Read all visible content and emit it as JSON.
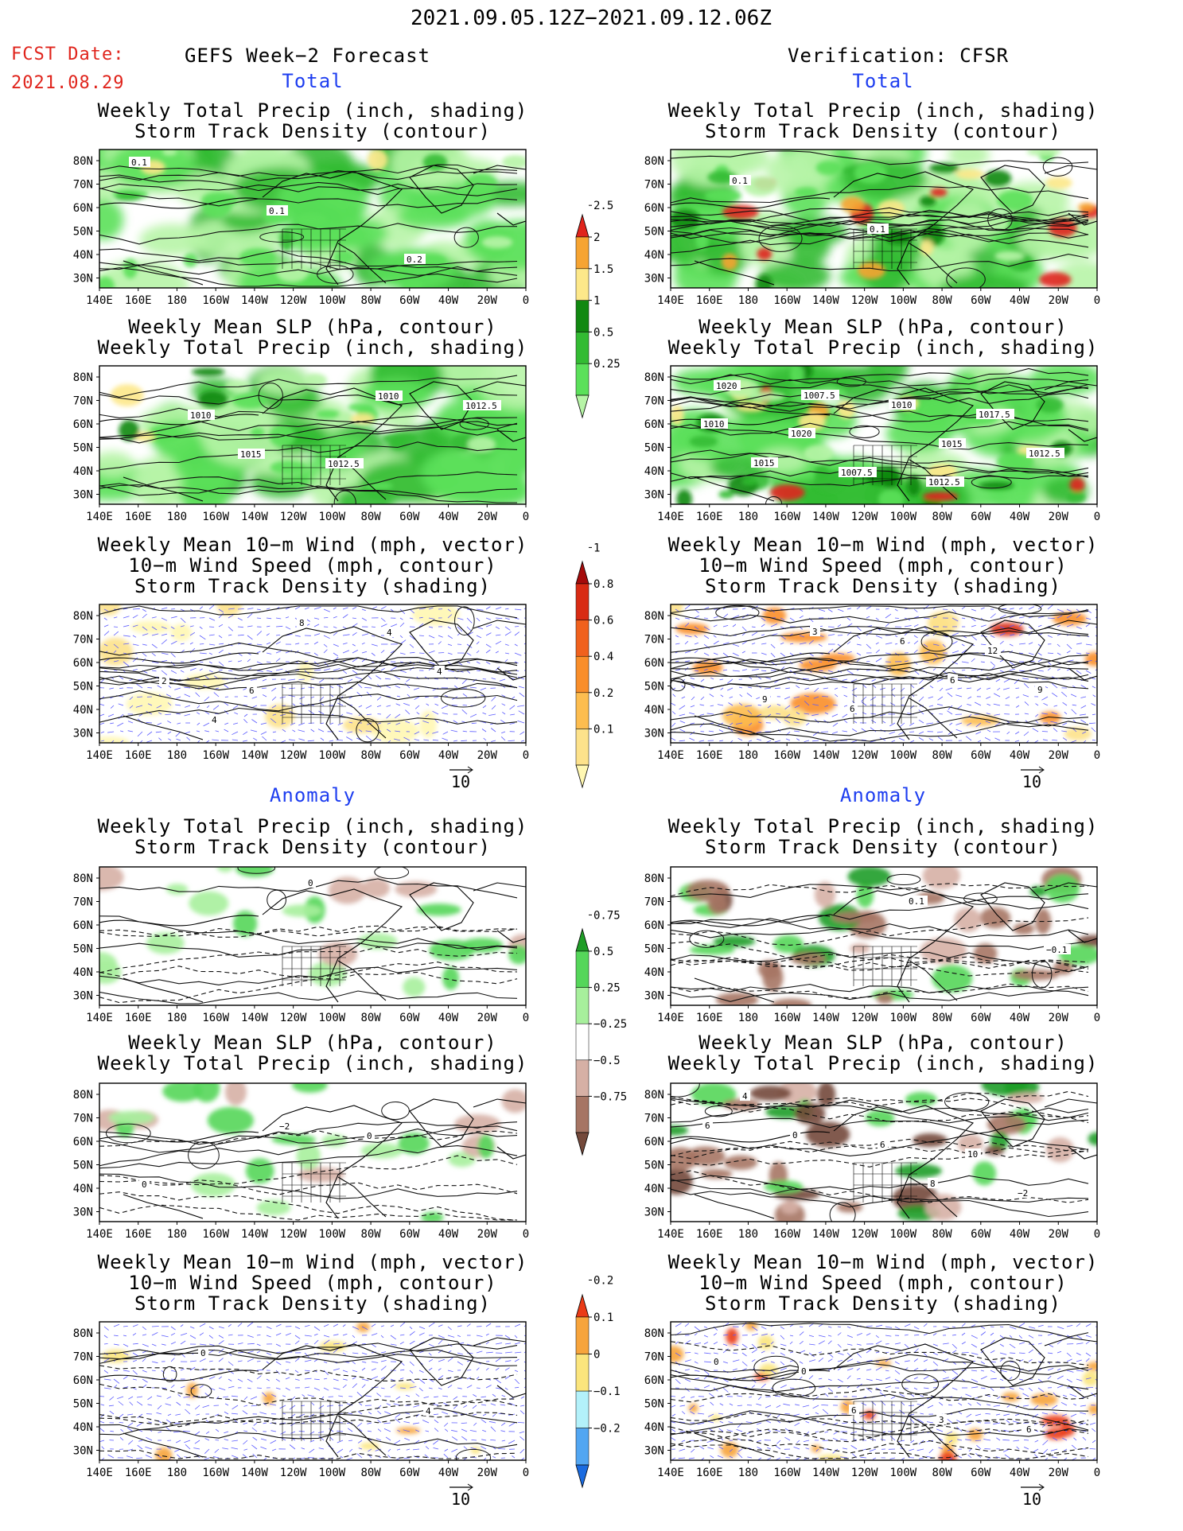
{
  "header": {
    "title": "2021.09.05.12Z−2021.09.12.06Z",
    "fcst_label": "FCST Date:",
    "fcst_date": "2021.08.29",
    "left_title": "GEFS Week−2 Forecast",
    "right_title": "Verification: CFSR"
  },
  "sections": {
    "total": "Total",
    "anomaly": "Anomaly"
  },
  "panel_titles": {
    "precip_track": [
      "Weekly Total Precip (inch, shading)",
      "Storm Track Density (contour)"
    ],
    "slp_precip": [
      "Weekly Mean SLP (hPa, contour)",
      "Weekly Total Precip (inch, shading)"
    ],
    "wind_track": [
      "Weekly Mean 10−m Wind (mph, vector)",
      "10−m Wind Speed (mph, contour)",
      "Storm Track Density (shading)"
    ]
  },
  "axes": {
    "lat_labels": [
      "80N",
      "70N",
      "60N",
      "50N",
      "40N",
      "30N"
    ],
    "lon_labels": [
      "140E",
      "160E",
      "180",
      "160W",
      "140W",
      "120W",
      "100W",
      "80W",
      "60W",
      "40W",
      "20W",
      "0"
    ]
  },
  "vector_ref": "10",
  "colorbars": {
    "precip_total": {
      "labels": [
        "0.25",
        "0.5",
        "1",
        "1.5",
        "2",
        "2.5"
      ],
      "colors": [
        "#b7f4a7",
        "#5be05a",
        "#33bb33",
        "#118811",
        "#fde88a",
        "#f6a432",
        "#e0241c"
      ]
    },
    "track_total": {
      "labels": [
        "0.1",
        "0.2",
        "0.4",
        "0.6",
        "0.8",
        "1"
      ],
      "colors": [
        "#fff7b2",
        "#fde28b",
        "#fdbd4f",
        "#f98e2a",
        "#f0611d",
        "#d82b14",
        "#a50b0b"
      ]
    },
    "precip_anom": {
      "labels": [
        "−0.75",
        "−0.5",
        "−0.25",
        "0.25",
        "0.5",
        "0.75"
      ],
      "colors": [
        "#74493b",
        "#a67564",
        "#d6b0a5",
        "#ffffff",
        "#a7ef9c",
        "#55d65a",
        "#1f9d27"
      ]
    },
    "track_anom": {
      "labels": [
        "−0.2",
        "−0.1",
        "0",
        "0.1",
        "0.2"
      ],
      "colors": [
        "#1a6be0",
        "#52a6f2",
        "#b3f1fa",
        "#fbe57d",
        "#f7a43c",
        "#ea3a16"
      ]
    }
  },
  "map_labels": {
    "gefs_precip_track": [
      "0.1",
      "0.1",
      "0.2"
    ],
    "cfsr_precip_track": [
      "0.1",
      "0.1"
    ],
    "gefs_slp": [
      "1010",
      "1012.5",
      "1012.5",
      "1015",
      "1010"
    ],
    "cfsr_slp": [
      "1020",
      "1012.5",
      "1010",
      "1007.5",
      "1017.5",
      "1015",
      "1010",
      "1012.5",
      "1007.5",
      "1015",
      "1020"
    ],
    "gefs_wind": [
      "6",
      "4",
      "2",
      "8",
      "4",
      "4"
    ],
    "cfsr_wind": [
      "6",
      "12",
      "9",
      "6",
      "9",
      "3",
      "6"
    ],
    "gefs_anom_precip": [
      "0"
    ],
    "cfsr_anom_precip": [
      "0.1",
      "−0.1"
    ],
    "gefs_anom_slp": [
      "0",
      "0",
      "−2"
    ],
    "cfsr_anom_slp": [
      "10",
      "4",
      "6",
      "−2",
      "0",
      "8",
      "6"
    ],
    "gefs_anom_wind": [
      "4",
      "0"
    ],
    "cfsr_anom_wind": [
      "6",
      "0",
      "3",
      "0",
      "6"
    ]
  }
}
